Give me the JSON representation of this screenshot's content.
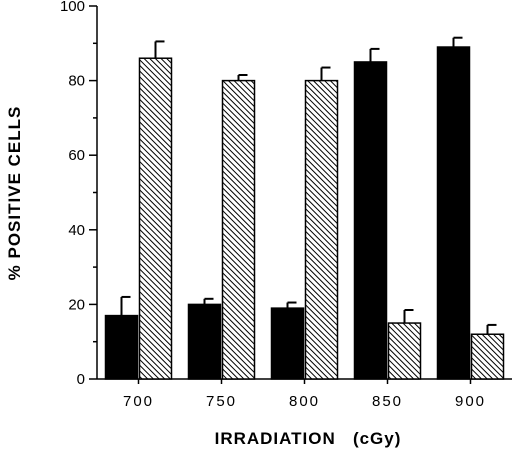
{
  "chart_data": {
    "type": "bar",
    "title": "",
    "xlabel": "IRRADIATION   (cGy)",
    "ylabel": "% POSITIVE CELLS",
    "categories": [
      "700",
      "750",
      "800",
      "850",
      "900"
    ],
    "ylim": [
      0,
      100
    ],
    "yticks": [
      0,
      20,
      40,
      60,
      80,
      100
    ],
    "grid": false,
    "legend": "none",
    "series": [
      {
        "pattern": "solid",
        "color": "#000000",
        "values": [
          17,
          20,
          19,
          85,
          89
        ],
        "errors": [
          5,
          1.5,
          1.5,
          3.5,
          2.5
        ]
      },
      {
        "pattern": "hatched",
        "color": "#000000",
        "values": [
          86,
          80,
          80,
          15,
          12
        ],
        "errors": [
          4.5,
          1.5,
          3.5,
          3.5,
          2.5
        ]
      }
    ]
  }
}
